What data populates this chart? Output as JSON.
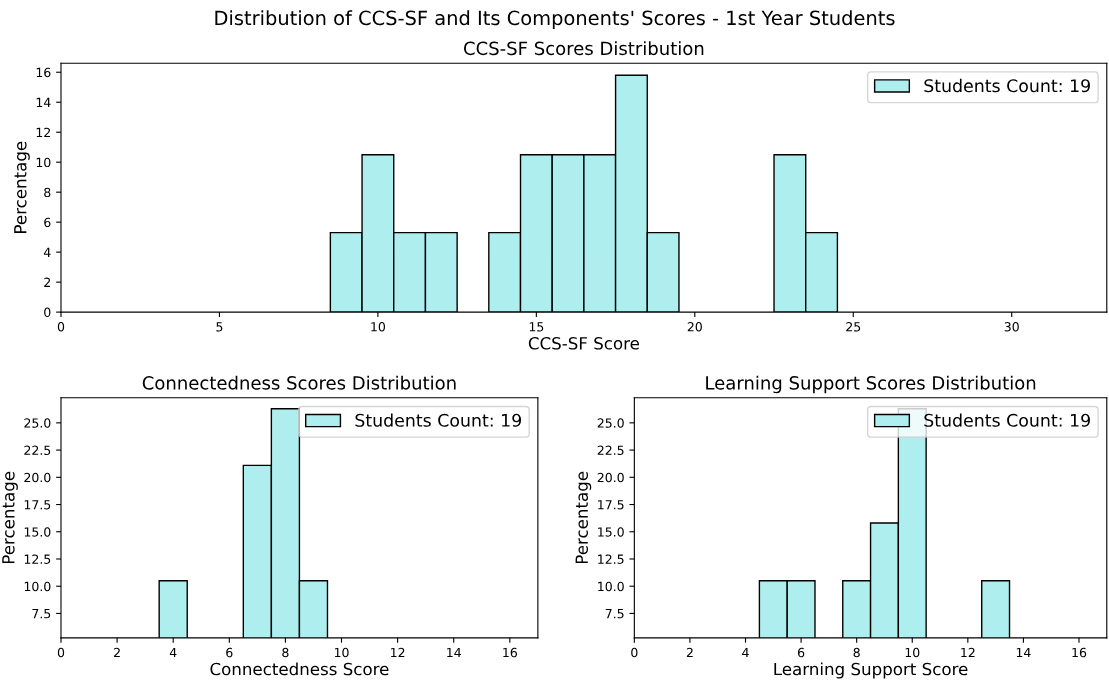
{
  "chart_data": [
    {
      "type": "histogram",
      "title": "Distribution of CCS-SF and Its Components' Scores - 1st Year Students",
      "subtitle": "CCS-SF Scores Distribution",
      "xlabel": "CCS-SF Score",
      "ylabel": "Percentage",
      "bins": [
        8.5,
        9.5,
        10.5,
        11.5,
        12.5,
        13.5,
        14.5,
        15.5,
        16.5,
        17.5,
        18.5,
        19.5,
        20.5,
        21.5,
        22.5,
        23.5,
        24.5
      ],
      "series": [
        {
          "name": "Students Count: 19",
          "color": "#afeeee",
          "values": [
            5.3,
            10.5,
            5.3,
            5.3,
            null,
            5.3,
            10.5,
            10.5,
            10.5,
            15.8,
            5.3,
            null,
            null,
            null,
            10.5,
            5.3
          ]
        }
      ],
      "xlim": [
        0,
        33
      ],
      "ylim": [
        0,
        16.6
      ],
      "xticks": [
        0,
        5,
        10,
        15,
        20,
        25,
        30
      ],
      "yticks": [
        0,
        2,
        4,
        6,
        8,
        10,
        12,
        14,
        16
      ],
      "legend": "top right",
      "grid": false
    },
    {
      "type": "histogram",
      "title": "Connectedness Scores Distribution",
      "xlabel": "Connectedness Score",
      "ylabel": "Percentage",
      "bins": [
        3.5,
        4.5,
        5.5,
        6.5,
        7.5,
        8.5,
        9.5
      ],
      "series": [
        {
          "name": "Students Count: 19",
          "color": "#afeeee",
          "values": [
            10.5,
            null,
            null,
            21.1,
            26.3,
            10.5
          ]
        }
      ],
      "xlim": [
        0,
        17
      ],
      "ylim": [
        5.26,
        27.3
      ],
      "xticks": [
        0,
        2,
        4,
        6,
        8,
        10,
        12,
        14,
        16
      ],
      "yticks": [
        {
          "value": 7.5,
          "label": "7.5"
        },
        {
          "value": 10,
          "label": "10.0"
        },
        {
          "value": 12.5,
          "label": "12.5"
        },
        {
          "value": 15,
          "label": "15.0"
        },
        {
          "value": 17.5,
          "label": "17.5"
        },
        {
          "value": 20,
          "label": "20.0"
        },
        {
          "value": 22.5,
          "label": "22.5"
        },
        {
          "value": 25,
          "label": "25.0"
        }
      ],
      "legend": "top right",
      "grid": false
    },
    {
      "type": "histogram",
      "title": "Learning Support Scores Distribution",
      "xlabel": "Learning Support Score",
      "ylabel": "Percentage",
      "bins": [
        4.5,
        5.5,
        6.5,
        7.5,
        8.5,
        9.5,
        10.5,
        11.5,
        12.5,
        13.5
      ],
      "series": [
        {
          "name": "Students Count: 19",
          "color": "#afeeee",
          "values": [
            10.5,
            10.5,
            null,
            10.5,
            15.8,
            26.3,
            null,
            null,
            10.5
          ]
        }
      ],
      "xlim": [
        0,
        17
      ],
      "ylim": [
        5.26,
        27.3
      ],
      "xticks": [
        0,
        2,
        4,
        6,
        8,
        10,
        12,
        14,
        16
      ],
      "yticks": [
        {
          "value": 7.5,
          "label": "7.5"
        },
        {
          "value": 10,
          "label": "10.0"
        },
        {
          "value": 12.5,
          "label": "12.5"
        },
        {
          "value": 15,
          "label": "15.0"
        },
        {
          "value": 17.5,
          "label": "17.5"
        },
        {
          "value": 20,
          "label": "20.0"
        },
        {
          "value": 22.5,
          "label": "22.5"
        },
        {
          "value": 25,
          "label": "25.0"
        }
      ],
      "legend": "top right",
      "grid": false
    }
  ]
}
